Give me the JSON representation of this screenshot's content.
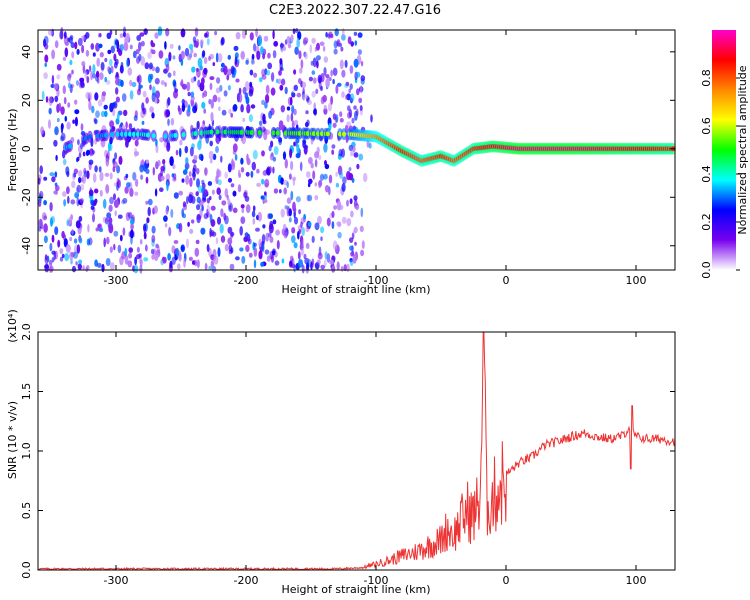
{
  "title": "C2E3.2022.307.22.47.G16",
  "chart_data": [
    {
      "type": "heatmap",
      "xlabel": "Height of straight line (km)",
      "ylabel": "Frequency (Hz)",
      "xlim": [
        -360,
        130
      ],
      "ylim": [
        -50,
        49
      ],
      "x_ticks": [
        -300,
        -200,
        -100,
        0,
        100
      ],
      "y_ticks": [
        -40,
        -20,
        0,
        20,
        40
      ],
      "colorbar": {
        "label": "Normalized spectral amplitude",
        "range": [
          0,
          1
        ],
        "ticks": [
          "0.0",
          "0.2",
          "0.4",
          "0.6",
          "0.8"
        ],
        "colors": [
          "#ffffff",
          "#7700ee",
          "#0000ff",
          "#00ffff",
          "#00ff00",
          "#ffff00",
          "#ff8800",
          "#ff0000",
          "#ff00cc"
        ]
      },
      "noise_region_x": [
        -360,
        -110
      ],
      "ridge_points": [
        {
          "x": -340,
          "y": 0,
          "v": 0.35
        },
        {
          "x": -320,
          "y": 5,
          "v": 0.3
        },
        {
          "x": -300,
          "y": 6,
          "v": 0.35
        },
        {
          "x": -280,
          "y": 6,
          "v": 0.4
        },
        {
          "x": -265,
          "y": 5,
          "v": 0.35
        },
        {
          "x": -225,
          "y": 7,
          "v": 0.45
        },
        {
          "x": -120,
          "y": 6,
          "v": 0.6
        },
        {
          "x": -100,
          "y": 5,
          "v": 0.75
        },
        {
          "x": -80,
          "y": -1,
          "v": 0.85
        },
        {
          "x": -65,
          "y": -5,
          "v": 0.8
        },
        {
          "x": -50,
          "y": -3,
          "v": 0.85
        },
        {
          "x": -40,
          "y": -5,
          "v": 0.8
        },
        {
          "x": -25,
          "y": 0,
          "v": 0.85
        },
        {
          "x": -10,
          "y": 1,
          "v": 0.9
        },
        {
          "x": 10,
          "y": 0,
          "v": 0.95
        },
        {
          "x": 50,
          "y": 0,
          "v": 0.95
        },
        {
          "x": 90,
          "y": 0,
          "v": 0.9
        },
        {
          "x": 130,
          "y": 0,
          "v": 0.85
        }
      ]
    },
    {
      "type": "line",
      "xlabel": "Height of straight line (km)",
      "ylabel": "SNR (10 * v/v)",
      "y_scale_label": "(x10⁴)",
      "xlim": [
        -360,
        130
      ],
      "ylim": [
        0,
        2.0
      ],
      "x_ticks": [
        -300,
        -200,
        -100,
        0,
        100
      ],
      "y_ticks": [
        "0.0",
        "0.5",
        "1.0",
        "1.5",
        "2.0"
      ],
      "color": "#ee3333",
      "series": [
        {
          "x": [
            -360,
            -300,
            -200,
            -130,
            -110,
            -100,
            -90,
            -80,
            -70,
            -60,
            -50,
            -45,
            -40,
            -35,
            -30,
            -25,
            -20,
            -17,
            -15,
            -10,
            -5,
            0,
            5,
            10,
            20,
            30,
            40,
            50,
            60,
            70,
            80,
            90,
            95,
            100,
            110,
            120,
            130
          ],
          "y": [
            0.01,
            0.01,
            0.01,
            0.01,
            0.02,
            0.05,
            0.08,
            0.12,
            0.15,
            0.2,
            0.25,
            0.35,
            0.3,
            0.4,
            0.5,
            0.45,
            0.6,
            2.0,
            0.55,
            0.6,
            0.7,
            0.8,
            0.85,
            0.9,
            0.95,
            1.05,
            1.08,
            1.12,
            1.15,
            1.12,
            1.1,
            1.13,
            1.2,
            1.12,
            1.1,
            1.1,
            1.08
          ]
        }
      ]
    }
  ]
}
